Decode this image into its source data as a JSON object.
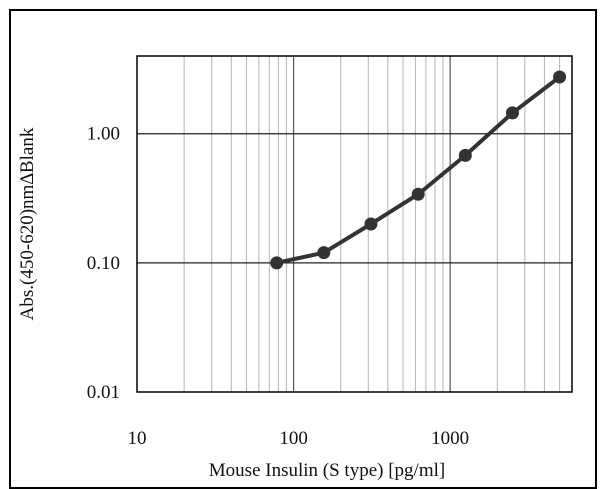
{
  "chart_data": {
    "type": "line",
    "title": "",
    "xlabel": "Mouse Insulin (S type)  [pg/ml]",
    "ylabel": "Abs.(450-620)nm∆Blank",
    "x_scale": "log",
    "y_scale": "log",
    "xlim": [
      10,
      6000
    ],
    "ylim": [
      0.01,
      4
    ],
    "x_ticks": [
      10,
      100,
      1000
    ],
    "x_tick_labels": [
      "10",
      "100",
      "1000"
    ],
    "y_ticks": [
      0.01,
      0.1,
      1.0
    ],
    "y_tick_labels": [
      "0.01",
      "0.10",
      "1.00"
    ],
    "grid": true,
    "series": [
      {
        "x": [
          78,
          156,
          312,
          625,
          1250,
          2500,
          5000
        ],
        "y": [
          0.1,
          0.12,
          0.2,
          0.34,
          0.68,
          1.45,
          2.75
        ],
        "color": "#333333"
      }
    ]
  }
}
